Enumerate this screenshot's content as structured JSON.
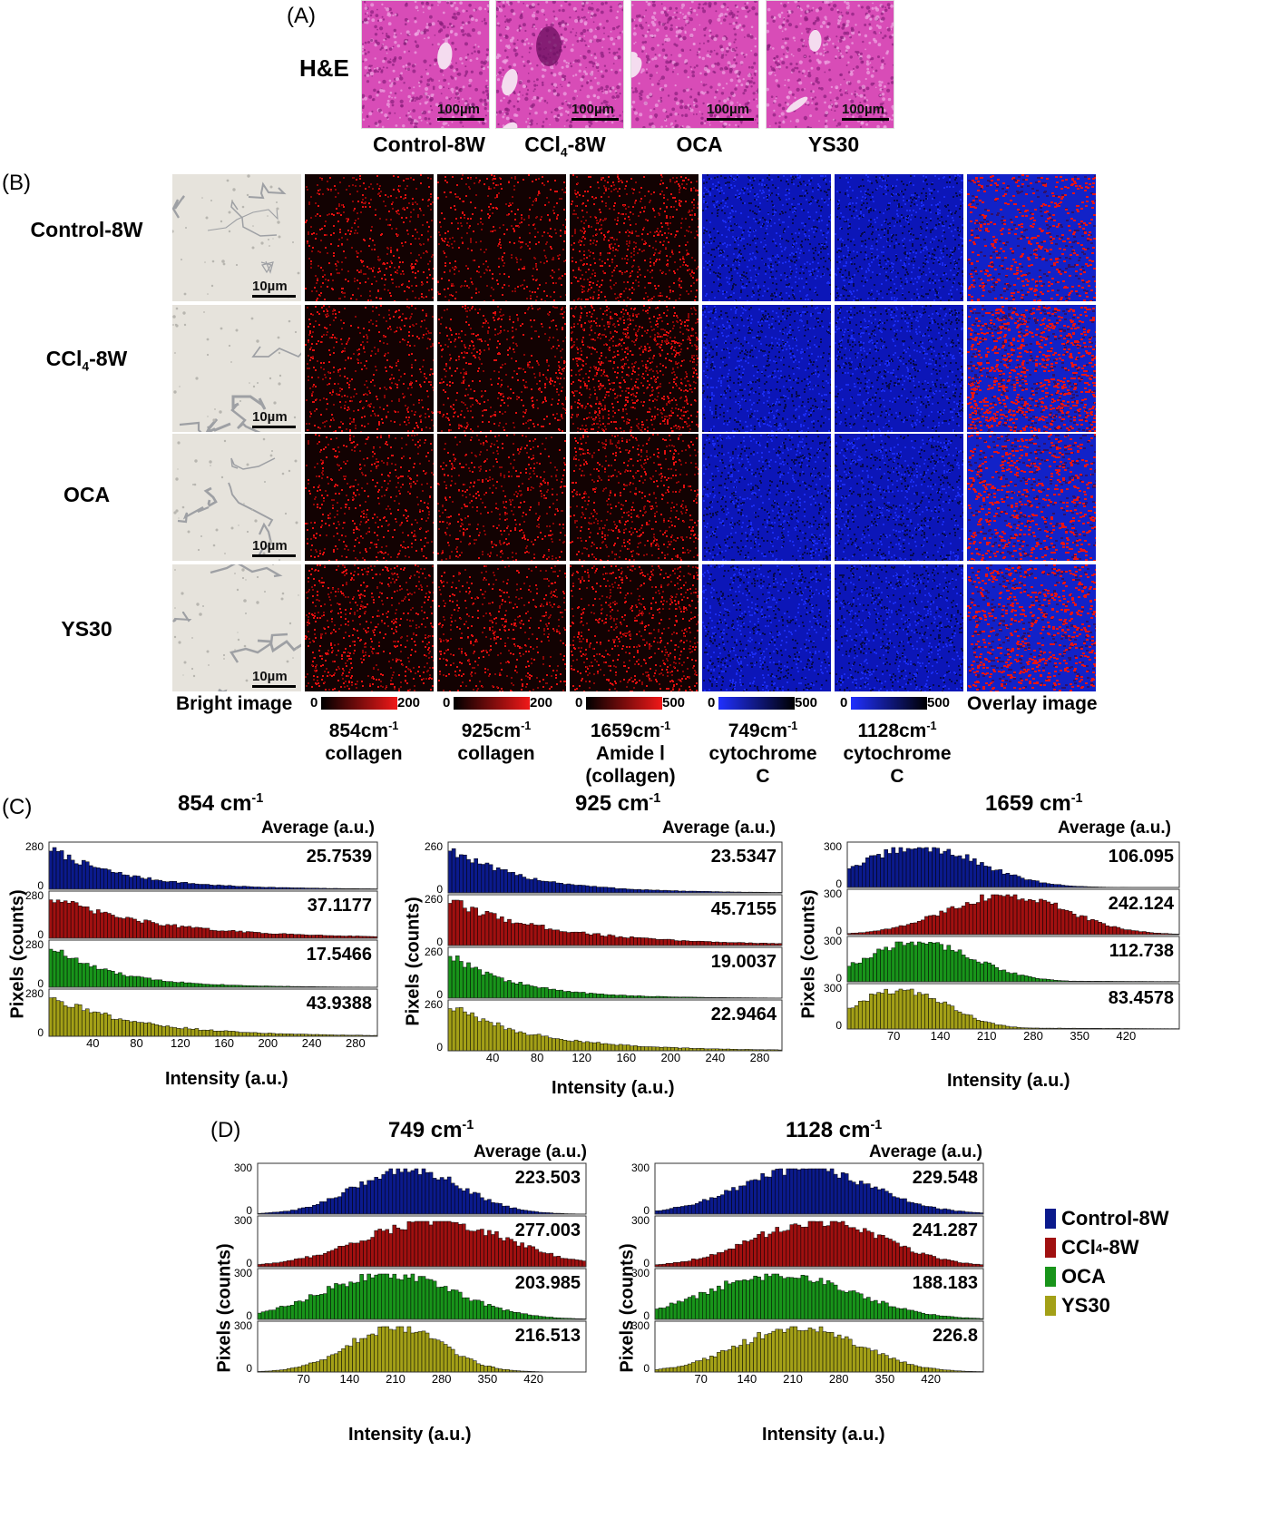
{
  "panel_a": {
    "letter": "(A)",
    "row_label": "H&E",
    "scale_bar": "100µm",
    "labels": [
      "Control-8W",
      "CCl",
      "OCA",
      "YS30"
    ],
    "ccl_sub": "4",
    "ccl_suffix": "-8W"
  },
  "panel_b": {
    "letter": "(B)",
    "rows": [
      "Control-8W",
      "CCl",
      "OCA",
      "YS30"
    ],
    "ccl_sub": "4",
    "ccl_suffix": "-8W",
    "scale_bar": "10µm",
    "bright_label": "Bright image",
    "overlay_label": "Overlay image",
    "colorbars": [
      {
        "min": "0",
        "max": "200",
        "color": "red"
      },
      {
        "min": "0",
        "max": "200",
        "color": "red"
      },
      {
        "min": "0",
        "max": "500",
        "color": "red"
      },
      {
        "min": "0",
        "max": "500",
        "color": "blue"
      },
      {
        "min": "0",
        "max": "500",
        "color": "blue"
      }
    ],
    "spectra": [
      {
        "wn": "854",
        "unit": "cm",
        "exp": "-1",
        "line2": "collagen",
        "line3": ""
      },
      {
        "wn": "925",
        "unit": "cm",
        "exp": "-1",
        "line2": "collagen",
        "line3": ""
      },
      {
        "wn": "1659",
        "unit": "cm",
        "exp": "-1",
        "line2": "Amide Ⅰ",
        "line3": "(collagen)"
      },
      {
        "wn": "749",
        "unit": "cm",
        "exp": "-1",
        "line2": "cytochrome",
        "line3": "C"
      },
      {
        "wn": "1128",
        "unit": "cm",
        "exp": "-1",
        "line2": "cytochrome",
        "line3": "C"
      }
    ]
  },
  "panel_c": {
    "letter": "(C)"
  },
  "panel_d": {
    "letter": "(D)"
  },
  "axis": {
    "avg_label": "Average (a.u.)",
    "xlabel": "Intensity (a.u.)",
    "ylabel": "Pixels (counts)"
  },
  "colors": {
    "Control-8W": "#0b1a8c",
    "CCl4-8W": "#a01010",
    "OCA": "#18941a",
    "YS30": "#a3a017"
  },
  "legend": [
    {
      "name": "Control-8W",
      "color": "#0b1a8c"
    },
    {
      "name": "CCl",
      "sub": "4",
      "suffix": "-8W",
      "color": "#a01010"
    },
    {
      "name": "OCA",
      "color": "#18941a"
    },
    {
      "name": "YS30",
      "color": "#a3a017"
    }
  ],
  "chart_data": [
    {
      "type": "bar",
      "title": "854 cm-1",
      "title_num": "854",
      "xlabel": "Intensity (a.u.)",
      "ylabel": "Pixels (counts)",
      "xlim": [
        0,
        300
      ],
      "ylim": [
        0,
        280
      ],
      "ytick": "280",
      "xticks": [
        40,
        80,
        120,
        160,
        200,
        240,
        280
      ],
      "series": [
        {
          "name": "Control-8W",
          "average": "25.7539",
          "shape": [
            0,
            35,
            0.0
          ]
        },
        {
          "name": "CCl4-8W",
          "average": "37.1177",
          "shape": [
            0,
            50,
            0.0
          ]
        },
        {
          "name": "OCA",
          "average": "17.5466",
          "shape": [
            0,
            30,
            0.0
          ]
        },
        {
          "name": "YS30",
          "average": "43.9388",
          "shape": [
            0,
            40,
            0.0
          ]
        }
      ]
    },
    {
      "type": "bar",
      "title": "925 cm-1",
      "title_num": "925",
      "xlabel": "Intensity (a.u.)",
      "ylabel": "Pixels (counts)",
      "xlim": [
        0,
        300
      ],
      "ylim": [
        0,
        260
      ],
      "ytick": "260",
      "xticks": [
        40,
        80,
        120,
        160,
        200,
        240,
        280
      ],
      "series": [
        {
          "name": "Control-8W",
          "average": "23.5347",
          "shape": [
            0,
            35,
            0.0
          ]
        },
        {
          "name": "CCl4-8W",
          "average": "45.7155",
          "shape": [
            0,
            50,
            0.0
          ]
        },
        {
          "name": "OCA",
          "average": "19.0037",
          "shape": [
            0,
            30,
            0.0
          ]
        },
        {
          "name": "YS30",
          "average": "22.9464",
          "shape": [
            0,
            40,
            0.0
          ]
        }
      ]
    },
    {
      "type": "bar",
      "title": "1659 cm-1",
      "title_num": "1659",
      "xlabel": "Intensity (a.u.)",
      "ylabel": "Pixels (counts)",
      "xlim": [
        0,
        500
      ],
      "ylim": [
        0,
        300
      ],
      "ytick": "300",
      "xticks": [
        70,
        140,
        210,
        280,
        350,
        420
      ],
      "series": [
        {
          "name": "Control-8W",
          "average": "106.095",
          "shape": [
            110,
            90,
            0.05
          ]
        },
        {
          "name": "CCl4-8W",
          "average": "242.124",
          "shape": [
            240,
            90,
            0.0
          ]
        },
        {
          "name": "OCA",
          "average": "112.738",
          "shape": [
            110,
            80,
            0.1
          ]
        },
        {
          "name": "YS30",
          "average": "83.4578",
          "shape": [
            80,
            70,
            0.1
          ]
        }
      ]
    },
    {
      "type": "bar",
      "title": "749 cm-1",
      "title_num": "749",
      "xlabel": "Intensity (a.u.)",
      "ylabel": "Pixels (counts)",
      "xlim": [
        0,
        500
      ],
      "ylim": [
        0,
        300
      ],
      "ytick": "300",
      "xticks": [
        70,
        140,
        210,
        280,
        350,
        420
      ],
      "series": [
        {
          "name": "Control-8W",
          "average": "223.503",
          "shape": [
            230,
            80,
            0.0
          ]
        },
        {
          "name": "CCl4-8W",
          "average": "277.003",
          "shape": [
            270,
            110,
            0.0
          ]
        },
        {
          "name": "OCA",
          "average": "203.985",
          "shape": [
            200,
            100,
            0.0
          ]
        },
        {
          "name": "YS30",
          "average": "216.513",
          "shape": [
            210,
            70,
            0.0
          ]
        }
      ]
    },
    {
      "type": "bar",
      "title": "1128 cm-1",
      "title_num": "1128",
      "xlabel": "Intensity (a.u.)",
      "ylabel": "Pixels (counts)",
      "xlim": [
        0,
        500
      ],
      "ylim": [
        0,
        300
      ],
      "ytick": "300",
      "xticks": [
        70,
        140,
        210,
        280,
        350,
        420
      ],
      "series": [
        {
          "name": "Control-8W",
          "average": "229.548",
          "shape": [
            230,
            100,
            0.0
          ]
        },
        {
          "name": "CCl4-8W",
          "average": "241.287",
          "shape": [
            250,
            100,
            0.0
          ]
        },
        {
          "name": "OCA",
          "average": "188.183",
          "shape": [
            190,
            110,
            0.0
          ]
        },
        {
          "name": "YS30",
          "average": "226.8",
          "shape": [
            220,
            90,
            0.0
          ]
        }
      ]
    }
  ]
}
